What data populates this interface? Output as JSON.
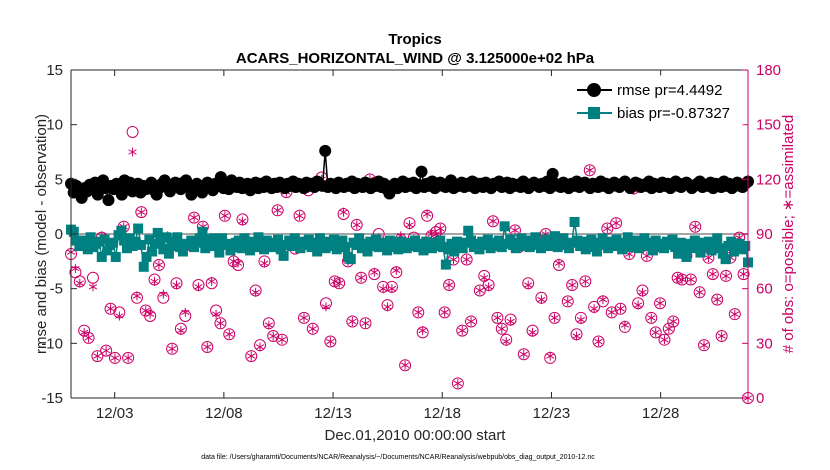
{
  "chart_data": {
    "type": "line",
    "title": "Tropics",
    "subtitle": "ACARS_HORIZONTAL_WIND @ 3.125000e+02 hPa",
    "xlabel": "Dec.01,2010 00:00:00 start",
    "ylabel_left": "rmse and bias (model - observation)",
    "ylabel_right": "# of obs: o=possible; ∗=assimilated",
    "ylim_left": [
      -15,
      15
    ],
    "ylim_right": [
      0,
      180
    ],
    "xlim": [
      1,
      32
    ],
    "x_ticks": [
      {
        "value": 3,
        "label": "12/03"
      },
      {
        "value": 8,
        "label": "12/08"
      },
      {
        "value": 13,
        "label": "12/13"
      },
      {
        "value": 18,
        "label": "12/18"
      },
      {
        "value": 23,
        "label": "12/23"
      },
      {
        "value": 28,
        "label": "12/28"
      }
    ],
    "y_ticks_left": [
      "-15",
      "-10",
      "-5",
      "0",
      "5",
      "10",
      "15"
    ],
    "y_ticks_right": [
      "0",
      "30",
      "60",
      "90",
      "120",
      "150",
      "180"
    ],
    "footnote": "data file: /Users/gharamti/Documents/NCAR/Reanalysis/~/Documents/NCAR/Reanalysis/webpub/obs_diag_output_2010-12.nc",
    "colors": {
      "rmse": "#000000",
      "bias": "#008080",
      "obs": "#cc0066",
      "zero_line": "#a6a6a6"
    },
    "series": [
      {
        "name": "rmse pr=4.4492",
        "axis": "left",
        "marker": "circle",
        "values": [
          4.6,
          3.8,
          4.4,
          4.0,
          3.3,
          4.2,
          3.9,
          4.5,
          4.1,
          4.7,
          3.6,
          4.4,
          4.9,
          4.2,
          3.1,
          4.4,
          4.1,
          4.6,
          4.4,
          3.6,
          4.9,
          4.4,
          4.7,
          3.9,
          4.2,
          4.6,
          3.8,
          4.4,
          4.1,
          4.4,
          4.7,
          4.0,
          3.6,
          4.2,
          4.6,
          4.9,
          4.4,
          3.9,
          4.4,
          4.7,
          4.4,
          4.1,
          4.7,
          4.9,
          4.4,
          3.6,
          4.1,
          4.6,
          4.4,
          3.8,
          4.2,
          4.7,
          4.4,
          4.0,
          4.6,
          4.4,
          5.2,
          4.2,
          4.5,
          4.1,
          4.9,
          4.4,
          4.3,
          4.7,
          4.2,
          4.5,
          4.6,
          4.0,
          4.4,
          4.7,
          4.2,
          4.6,
          4.3,
          4.8,
          4.4,
          4.2,
          4.6,
          4.3,
          4.7,
          4.5,
          4.2,
          4.6,
          4.4,
          4.8,
          4.3,
          4.6,
          4.4,
          4.2,
          4.7,
          4.4,
          4.6,
          4.3,
          4.8,
          4.5,
          4.4,
          7.6,
          4.3,
          4.6,
          4.4,
          4.2,
          4.7,
          4.5,
          4.3,
          4.6,
          4.4,
          4.8,
          4.2,
          4.6,
          4.4,
          4.3,
          4.7,
          4.5,
          4.2,
          4.6,
          4.4,
          4.8,
          4.3,
          4.6,
          4.1,
          3.7,
          4.4,
          4.6,
          4.2,
          4.5,
          4.8,
          4.3,
          4.6,
          4.4,
          4.7,
          4.2,
          4.5,
          5.7,
          4.3,
          4.6,
          4.4,
          4.8,
          4.2,
          4.5,
          4.7,
          4.4,
          4.3,
          4.6,
          4.9,
          4.2,
          4.5,
          4.4,
          4.7,
          4.3,
          4.6,
          4.4,
          4.8,
          4.2,
          4.5,
          4.6,
          4.3,
          4.7,
          4.4,
          4.2,
          4.6,
          4.5,
          4.8,
          4.3,
          4.4,
          4.7,
          4.2,
          4.6,
          4.4,
          4.5,
          4.3,
          4.8,
          4.6,
          4.2,
          4.4,
          4.7,
          4.5,
          4.3,
          4.6,
          4.4,
          4.8,
          4.2,
          5.5,
          4.6,
          4.4,
          4.3,
          4.7,
          4.5,
          4.2,
          4.6,
          4.4,
          4.8,
          4.3,
          4.5,
          4.7,
          4.4,
          4.2,
          4.6,
          4.5,
          4.3,
          4.8,
          4.4,
          4.6,
          4.2,
          4.5,
          4.7,
          4.4,
          4.3,
          4.6,
          4.8,
          4.5,
          4.2,
          4.4,
          4.7,
          4.6,
          4.3,
          4.5,
          4.4,
          4.8,
          4.2,
          4.6,
          4.5,
          4.3,
          4.7,
          4.4,
          4.6,
          4.2,
          4.5,
          4.8,
          4.4,
          4.3,
          4.6,
          4.7,
          4.5,
          4.2,
          4.4,
          4.6,
          4.8,
          4.3,
          4.5,
          4.4,
          4.7,
          4.2,
          4.6,
          4.5,
          4.3,
          4.8,
          4.4,
          4.6,
          4.2,
          4.5,
          4.7,
          4.4,
          4.3,
          4.6,
          4.8
        ]
      },
      {
        "name": "bias pr=-0.87327",
        "axis": "left",
        "marker": "square",
        "values": [
          0.4,
          0.2,
          -0.6,
          -1.1,
          -0.6,
          -1.1,
          -1.4,
          -0.3,
          -1.2,
          -0.9,
          -0.7,
          -2.1,
          -0.5,
          -1.5,
          -1.0,
          -0.8,
          -2.1,
          -0.1,
          0.3,
          -0.6,
          -1.3,
          -0.4,
          -1.1,
          -0.7,
          0.5,
          -1.0,
          -3.0,
          -2.1,
          -0.5,
          -1.6,
          -0.9,
          0.1,
          -0.8,
          -1.4,
          -0.3,
          -1.8,
          -1.1,
          -0.7,
          -0.3,
          -1.2,
          -1.6,
          -0.9,
          -1.0,
          -0.6,
          -1.2,
          -0.8,
          -0.4,
          0.2,
          -1.3,
          -0.5,
          -1.1,
          -0.4,
          -0.8,
          -1.7,
          -0.4,
          -1.0,
          -0.9,
          -1.5,
          -1.2,
          -0.8,
          -0.6,
          -1.3,
          -0.4,
          -1.0,
          -1.5,
          -0.7,
          -1.2,
          -0.3,
          -0.9,
          -1.4,
          -0.6,
          -1.1,
          -1.2,
          -0.8,
          -0.5,
          -1.4,
          -2.0,
          -1.0,
          -0.6,
          -1.1,
          -0.4,
          -0.9,
          -1.3,
          -0.7,
          -1.0,
          -0.5,
          -1.2,
          -0.8,
          -1.6,
          -0.4,
          -1.0,
          -1.3,
          -0.7,
          -1.1,
          -0.5,
          -1.4,
          -0.9,
          -0.6,
          -1.2,
          -2.1,
          -2.3,
          -0.8,
          -1.0,
          -0.4,
          -1.3,
          -0.9,
          -1.6,
          -0.7,
          -1.1,
          -0.5,
          -1.2,
          -0.8,
          -1.0,
          -1.5,
          -0.6,
          -1.2,
          -0.9,
          -1.4,
          -0.7,
          -1.0,
          -1.3,
          -0.8,
          -1.1,
          -0.6,
          -1.2,
          -0.9,
          -1.5,
          -0.7,
          -1.0,
          -1.3,
          -0.8,
          -1.1,
          -0.6,
          -1.2,
          -2.8,
          -1.4,
          -0.9,
          -1.6,
          -0.7,
          -1.0,
          -1.3,
          -0.8,
          0.3,
          -0.6,
          -1.2,
          -0.9,
          -1.4,
          -0.7,
          -1.0,
          -0.5,
          -1.3,
          -0.8,
          -1.1,
          -0.6,
          -1.2,
          0.7,
          -0.9,
          -0.5,
          -1.0,
          -1.3,
          -0.8,
          -0.4,
          -1.1,
          -0.6,
          -1.2,
          -0.9,
          -0.3,
          -1.0,
          -1.3,
          -0.8,
          -0.5,
          -1.1,
          -0.7,
          -0.2,
          -1.2,
          -0.9,
          -0.4,
          -1.0,
          -1.3,
          -0.8,
          1.1,
          -0.6,
          -1.1,
          -0.7,
          -1.4,
          -0.9,
          -0.5,
          -1.2,
          -1.6,
          -0.8,
          -0.4,
          -1.0,
          -1.3,
          -0.7,
          -1.1,
          -0.5,
          -0.9,
          -1.4,
          -0.8,
          -0.3,
          -1.2,
          -1.0,
          -0.6,
          -1.3,
          -0.9,
          -0.4,
          -1.1,
          -0.8,
          -1.5,
          -0.6,
          -1.2,
          -0.9,
          -1.3,
          -0.7,
          -1.0,
          -0.5,
          -1.2,
          -1.8,
          -0.8,
          -1.4,
          -2.1,
          -0.9,
          -1.3,
          -0.6,
          -1.1,
          -1.7,
          -0.8,
          -1.2,
          -0.7,
          -1.5,
          -0.9,
          -0.4,
          -1.3,
          -1.8,
          -2.3,
          -1.1,
          -0.7,
          -1.6,
          -1.2,
          -0.9,
          -1.4,
          -1.1,
          -2.6
        ]
      },
      {
        "name": "possible",
        "axis": "right",
        "marker": "open-circle",
        "values": [
          79,
          69,
          64,
          37,
          33,
          66,
          23,
          88,
          26,
          49,
          22,
          47,
          94,
          22,
          146,
          55,
          102,
          48,
          45,
          65,
          73,
          55,
          87,
          27,
          63,
          38,
          45,
          84,
          99,
          62,
          94,
          28,
          63,
          48,
          41,
          100,
          35,
          75,
          73,
          98,
          85,
          23,
          59,
          29,
          75,
          41,
          34,
          103,
          32,
          113,
          85,
          82,
          100,
          44,
          114,
          38,
          83,
          121,
          52,
          31,
          64,
          63,
          101,
          75,
          42,
          95,
          66,
          41,
          120,
          68,
          90,
          61,
          51,
          61,
          69,
          87,
          18,
          96,
          88,
          47,
          36,
          100,
          89,
          91,
          93,
          47,
          62,
          76,
          8,
          37,
          76,
          42,
          118,
          59,
          67,
          62,
          97,
          44,
          38,
          32,
          43,
          92,
          83,
          24,
          63,
          37,
          87,
          55,
          90,
          22,
          44,
          73,
          86,
          53,
          62,
          35,
          44,
          64,
          125,
          50,
          31,
          53,
          93,
          47,
          96,
          49,
          39,
          79,
          115,
          52,
          59,
          78,
          44,
          36,
          52,
          32,
          38,
          42,
          66,
          65,
          78,
          65,
          94,
          58,
          29,
          77,
          68,
          54,
          34,
          67,
          77,
          46,
          88,
          68,
          0
        ]
      },
      {
        "name": "assimilated",
        "axis": "right",
        "marker": "star",
        "values": [
          80,
          71,
          63,
          36,
          33,
          61,
          23,
          89,
          26,
          49,
          22,
          45,
          94,
          22,
          135,
          56,
          102,
          48,
          46,
          64,
          73,
          57,
          89,
          27,
          62,
          37,
          47,
          84,
          99,
          61,
          94,
          28,
          64,
          46,
          41,
          100,
          35,
          75,
          74,
          97,
          86,
          23,
          58,
          28,
          74,
          40,
          34,
          103,
          32,
          113,
          85,
          83,
          100,
          44,
          115,
          38,
          84,
          120,
          50,
          31,
          64,
          63,
          102,
          75,
          42,
          95,
          66,
          41,
          120,
          69,
          88,
          60,
          50,
          60,
          70,
          89,
          18,
          95,
          87,
          47,
          37,
          101,
          90,
          90,
          93,
          47,
          62,
          76,
          8,
          37,
          76,
          42,
          117,
          59,
          66,
          61,
          97,
          44,
          38,
          31,
          42,
          92,
          83,
          24,
          62,
          36,
          86,
          54,
          90,
          23,
          44,
          74,
          86,
          53,
          62,
          34,
          43,
          64,
          125,
          49,
          31,
          54,
          93,
          47,
          96,
          49,
          40,
          79,
          114,
          51,
          58,
          78,
          44,
          36,
          52,
          32,
          38,
          42,
          66,
          65,
          78,
          65,
          94,
          58,
          29,
          77,
          68,
          54,
          34,
          67,
          77,
          46,
          88,
          68,
          0
        ]
      }
    ]
  }
}
